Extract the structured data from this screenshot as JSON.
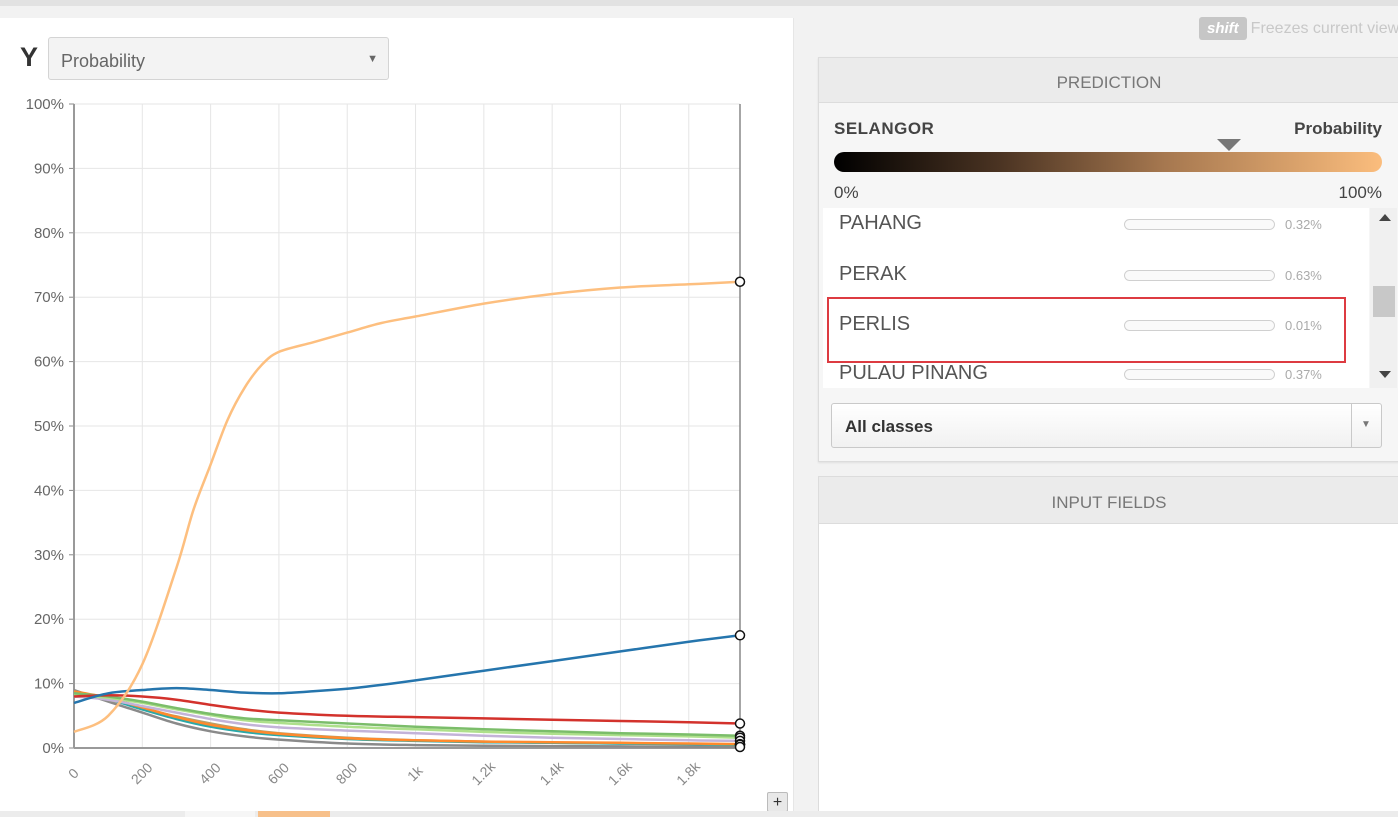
{
  "y_axis": {
    "letter": "Y",
    "selected": "Probability"
  },
  "shift_hint": {
    "key": "shift",
    "text": "Freezes current view"
  },
  "prediction": {
    "header": "PREDICTION",
    "class_name": "SELANGOR",
    "metric": "Probability",
    "scale_min": "0%",
    "scale_max": "100%",
    "marker_level": 0.72,
    "classes": [
      {
        "name": "PAHANG",
        "value": "0.32%",
        "fraction": 0.0032
      },
      {
        "name": "PERAK",
        "value": "0.63%",
        "fraction": 0.0063
      },
      {
        "name": "PERLIS",
        "value": "0.01%",
        "fraction": 0.0001
      },
      {
        "name": "PULAU PINANG",
        "value": "0.37%",
        "fraction": 0.0037
      }
    ],
    "class_filter": "All classes"
  },
  "input_fields": {
    "header": "INPUT FIELDS"
  },
  "toolbar": {
    "plus_label": "+"
  },
  "chart_data": {
    "type": "line",
    "y_tick_labels": [
      "0%",
      "10%",
      "20%",
      "30%",
      "40%",
      "50%",
      "60%",
      "70%",
      "80%",
      "90%",
      "100%"
    ],
    "x_tick_labels": [
      "0",
      "200",
      "400",
      "600",
      "800",
      "1k",
      "1.2k",
      "1.4k",
      "1.6k",
      "1.8k"
    ],
    "xlim": [
      0,
      1950
    ],
    "ylim": [
      0,
      100
    ],
    "grid": true,
    "series": [
      {
        "color": "#fdbf7f",
        "x": [
          0,
          100,
          200,
          300,
          350,
          400,
          450,
          500,
          550,
          600,
          700,
          800,
          900,
          1000,
          1200,
          1400,
          1600,
          1800,
          1950
        ],
        "y": [
          2.5,
          5,
          13,
          28,
          37,
          44,
          51,
          56,
          59.5,
          61.5,
          63,
          64.5,
          66,
          67,
          69,
          70.5,
          71.5,
          72,
          72.4
        ]
      },
      {
        "color": "#2575ad",
        "x": [
          0,
          100,
          200,
          300,
          400,
          500,
          600,
          700,
          800,
          900,
          1000,
          1200,
          1400,
          1600,
          1800,
          1950
        ],
        "y": [
          7,
          8.5,
          9,
          9.3,
          9,
          8.6,
          8.5,
          8.8,
          9.2,
          9.8,
          10.5,
          12,
          13.5,
          15,
          16.5,
          17.5
        ]
      },
      {
        "color": "#d3322c",
        "x": [
          0,
          100,
          200,
          300,
          400,
          500,
          600,
          800,
          1000,
          1200,
          1400,
          1600,
          1800,
          1950
        ],
        "y": [
          8,
          8.2,
          8,
          7.5,
          6.7,
          6,
          5.5,
          5,
          4.8,
          4.6,
          4.4,
          4.2,
          4,
          3.8
        ]
      },
      {
        "color": "#7bbd6a",
        "x": [
          0,
          100,
          200,
          300,
          400,
          500,
          600,
          800,
          1000,
          1200,
          1400,
          1600,
          1800,
          1950
        ],
        "y": [
          8.5,
          8,
          7.2,
          6.2,
          5.3,
          4.6,
          4.3,
          3.8,
          3.3,
          2.9,
          2.6,
          2.3,
          2.1,
          1.9
        ]
      },
      {
        "color": "#aee08b",
        "x": [
          0,
          100,
          200,
          300,
          400,
          500,
          600,
          800,
          1000,
          1200,
          1400,
          1600,
          1800,
          1950
        ],
        "y": [
          8.2,
          7.8,
          7,
          6,
          5.1,
          4.3,
          3.9,
          3.3,
          2.9,
          2.5,
          2.2,
          2,
          1.8,
          1.6
        ]
      },
      {
        "color": "#c3b3d8",
        "x": [
          0,
          100,
          200,
          300,
          400,
          500,
          600,
          800,
          1000,
          1200,
          1400,
          1600,
          1800,
          1950
        ],
        "y": [
          8,
          7.5,
          6.5,
          5.5,
          4.5,
          3.7,
          3.2,
          2.7,
          2.3,
          1.9,
          1.6,
          1.4,
          1.2,
          1.1
        ]
      },
      {
        "color": "#ff8a2d",
        "x": [
          0,
          100,
          200,
          300,
          400,
          500,
          600,
          800,
          1000,
          1200,
          1400,
          1600,
          1800,
          1950
        ],
        "y": [
          8.8,
          7.8,
          6.3,
          4.8,
          3.6,
          2.8,
          2.2,
          1.5,
          1.2,
          1,
          0.9,
          0.8,
          0.7,
          0.6
        ]
      },
      {
        "color": "#2aa8a8",
        "x": [
          0,
          100,
          200,
          300,
          400,
          500,
          600,
          800,
          1000,
          1200,
          1400,
          1600,
          1800,
          1950
        ],
        "y": [
          8.8,
          7.6,
          6,
          4.5,
          3.3,
          2.5,
          2,
          1.4,
          1.1,
          0.9,
          0.8,
          0.7,
          0.6,
          0.5
        ]
      },
      {
        "color": "#b7a16a",
        "x": [
          0,
          100,
          200,
          300,
          400,
          500,
          600,
          800,
          1000,
          1200,
          1400,
          1600,
          1800,
          1950
        ],
        "y": [
          8.5,
          7.5,
          6.2,
          4.9,
          3.8,
          2.9,
          2.3,
          1.6,
          1.2,
          1,
          0.8,
          0.7,
          0.6,
          0.5
        ]
      },
      {
        "color": "#8a8a8a",
        "x": [
          0,
          100,
          200,
          300,
          400,
          500,
          600,
          800,
          1000,
          1200,
          1400,
          1600,
          1800,
          1950
        ],
        "y": [
          9,
          7.2,
          5.5,
          3.8,
          2.6,
          1.8,
          1.3,
          0.7,
          0.45,
          0.35,
          0.3,
          0.25,
          0.2,
          0.15
        ]
      }
    ]
  }
}
